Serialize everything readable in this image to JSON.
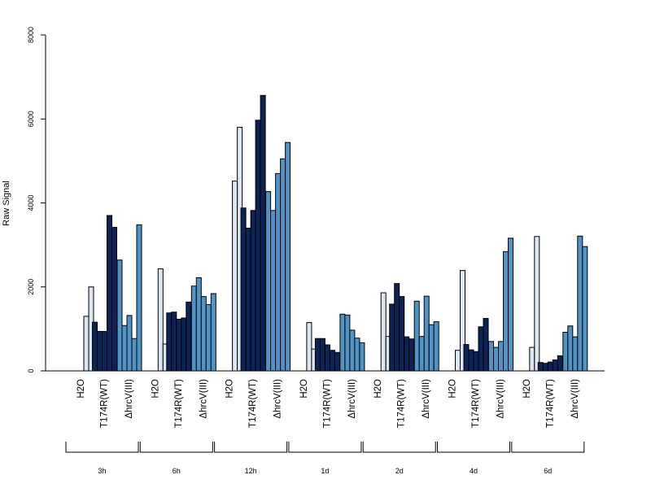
{
  "chart_data": {
    "type": "bar",
    "title": "",
    "xlabel": "",
    "ylabel": "Raw Signal",
    "ylim": [
      0,
      8000
    ],
    "yticks": [
      0,
      2000,
      4000,
      6000,
      8000
    ],
    "legend": "none",
    "grid": false,
    "group_labels": [
      "H2O",
      "T174R(WT)",
      "ΔhrcV(III)"
    ],
    "group_colors": [
      "#dbe6f2",
      "#0c2356",
      "#4f94c4"
    ],
    "bar_outline_color": "#000000",
    "timepoints": [
      {
        "label": "3h",
        "H2O": [
          0,
          1300,
          2000
        ],
        "T174R(WT)": [
          1160,
          940,
          940,
          3700,
          3420
        ],
        "ΔhrcV(III)": [
          2640,
          1080,
          1320,
          770,
          3480
        ]
      },
      {
        "label": "6h",
        "H2O": [
          0,
          2430,
          640
        ],
        "T174R(WT)": [
          1380,
          1400,
          1230,
          1260,
          1640
        ],
        "ΔhrcV(III)": [
          2020,
          2220,
          1770,
          1580,
          1840
        ]
      },
      {
        "label": "12h",
        "H2O": [
          0,
          4520,
          5800
        ],
        "T174R(WT)": [
          3880,
          3400,
          3820,
          5970,
          6560
        ],
        "ΔhrcV(III)": [
          4270,
          3820,
          4700,
          5050,
          5440
        ]
      },
      {
        "label": "1d",
        "H2O": [
          0,
          1150,
          520
        ],
        "T174R(WT)": [
          770,
          770,
          620,
          490,
          440
        ],
        "ΔhrcV(III)": [
          1350,
          1330,
          970,
          780,
          670
        ]
      },
      {
        "label": "2d",
        "H2O": [
          0,
          1860,
          820
        ],
        "T174R(WT)": [
          1590,
          2080,
          1770,
          810,
          760
        ],
        "ΔhrcV(III)": [
          1660,
          820,
          1780,
          1100,
          1170
        ]
      },
      {
        "label": "4d",
        "H2O": [
          0,
          490,
          2390
        ],
        "T174R(WT)": [
          630,
          500,
          460,
          1050,
          1250
        ],
        "ΔhrcV(III)": [
          700,
          560,
          700,
          2840,
          3160
        ]
      },
      {
        "label": "6d",
        "H2O": [
          0,
          560,
          3200
        ],
        "T174R(WT)": [
          200,
          180,
          210,
          260,
          360
        ],
        "ΔhrcV(III)": [
          920,
          1070,
          810,
          3210,
          2960
        ]
      }
    ]
  }
}
